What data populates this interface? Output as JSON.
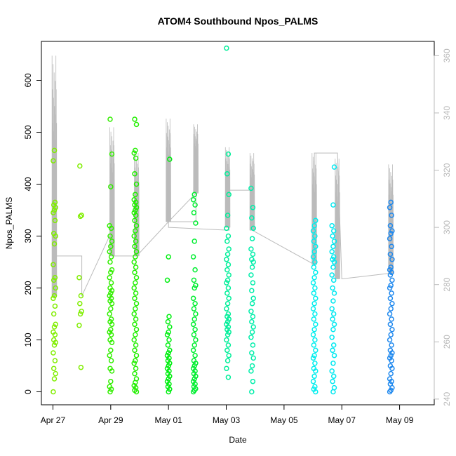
{
  "chart_data": {
    "type": "scatter",
    "title": "ATOM4 Southbound Npos_PALMS",
    "xlabel": "Date",
    "ylabel": "Npos_PALMS",
    "x_ticks": [
      "Apr 27",
      "Apr 29",
      "May 01",
      "May 03",
      "May 05",
      "May 07",
      "May 09"
    ],
    "x_tick_days": [
      0,
      2,
      4,
      6,
      8,
      10,
      12
    ],
    "xlim": [
      -0.4,
      13.2
    ],
    "ylim": [
      -25,
      675
    ],
    "y_ticks": [
      0,
      100,
      200,
      300,
      400,
      500,
      600
    ],
    "y2_ticks": [
      240,
      260,
      280,
      300,
      320,
      340,
      360
    ],
    "y2lim": [
      238,
      365
    ],
    "point_shape": "open-circle",
    "color_scale": "yellowgreen-to-blue by time",
    "series": [
      {
        "day": 0.05,
        "color": "#80ee00",
        "values": [
          0,
          25,
          35,
          45,
          60,
          75,
          90,
          95,
          100,
          110,
          115,
          125,
          130,
          150,
          165,
          180,
          185,
          200,
          215,
          220,
          245,
          285,
          300,
          305,
          330,
          345,
          350,
          355,
          360,
          365,
          445,
          465
        ]
      },
      {
        "day": 0.95,
        "color": "#80ee00",
        "values": [
          47,
          128,
          150,
          155,
          170,
          185,
          220,
          338,
          340,
          435
        ]
      },
      {
        "day": 2.0,
        "color": "#33ee00",
        "values": [
          0,
          5,
          10,
          20,
          40,
          45,
          60,
          70,
          80,
          95,
          100,
          110,
          115,
          120,
          130,
          135,
          140,
          150,
          160,
          170,
          175,
          180,
          185,
          190,
          195,
          200,
          210,
          220,
          230,
          235,
          250,
          260,
          270,
          280,
          290,
          300,
          315,
          320,
          395,
          458,
          525
        ]
      },
      {
        "day": 2.85,
        "color": "#22ee00",
        "values": [
          0,
          3,
          8,
          12,
          18,
          25,
          35,
          45,
          55,
          60,
          70,
          80,
          90,
          100,
          110,
          120,
          130,
          140,
          150,
          160,
          170,
          180,
          190,
          200,
          210,
          220,
          230,
          240,
          250,
          260,
          270,
          280,
          290,
          300,
          310,
          320,
          330,
          340,
          345,
          350,
          355,
          360,
          365,
          370,
          380,
          400,
          420,
          450,
          460,
          465,
          515,
          525
        ]
      },
      {
        "day": 4.0,
        "color": "#00ee10",
        "values": [
          0,
          5,
          10,
          15,
          20,
          25,
          30,
          35,
          40,
          45,
          50,
          55,
          60,
          65,
          70,
          75,
          80,
          90,
          100,
          110,
          115,
          125,
          135,
          145,
          215,
          260,
          448
        ]
      },
      {
        "day": 4.9,
        "color": "#00ee30",
        "values": [
          0,
          3,
          6,
          10,
          15,
          20,
          25,
          30,
          35,
          40,
          45,
          50,
          55,
          60,
          70,
          80,
          90,
          100,
          110,
          120,
          130,
          140,
          150,
          160,
          170,
          180,
          200,
          205,
          215,
          235,
          260,
          290,
          325,
          345,
          360,
          370,
          380
        ]
      },
      {
        "day": 6.05,
        "color": "#00ee99",
        "values": [
          28,
          45,
          60,
          70,
          80,
          90,
          100,
          110,
          115,
          120,
          125,
          130,
          135,
          140,
          145,
          150,
          160,
          170,
          180,
          190,
          200,
          210,
          215,
          225,
          235,
          245,
          255,
          265,
          275,
          290,
          300,
          315,
          340,
          380,
          420,
          458,
          662
        ]
      },
      {
        "day": 6.9,
        "color": "#00eeaa",
        "values": [
          0,
          20,
          40,
          50,
          65,
          75,
          90,
          105,
          115,
          125,
          135,
          145,
          155,
          170,
          180,
          195,
          210,
          225,
          240,
          250,
          255,
          265,
          275,
          295,
          315,
          335,
          355,
          392
        ]
      },
      {
        "day": 9.05,
        "color": "#00eeee",
        "values": [
          0,
          5,
          10,
          20,
          30,
          40,
          45,
          55,
          65,
          70,
          80,
          90,
          100,
          110,
          120,
          130,
          140,
          150,
          160,
          170,
          180,
          190,
          200,
          210,
          220,
          230,
          240,
          250,
          260,
          270,
          280,
          290,
          300,
          310,
          320,
          330
        ]
      },
      {
        "day": 9.7,
        "color": "#00e8f0",
        "values": [
          0,
          8,
          20,
          30,
          40,
          55,
          70,
          80,
          90,
          105,
          120,
          130,
          140,
          150,
          160,
          175,
          190,
          200,
          215,
          225,
          240,
          250,
          255,
          260,
          270,
          280,
          290,
          300,
          310,
          320,
          360,
          433
        ]
      },
      {
        "day": 11.7,
        "color": "#1e88ee",
        "values": [
          0,
          3,
          8,
          15,
          20,
          25,
          35,
          45,
          50,
          60,
          65,
          70,
          75,
          80,
          90,
          100,
          110,
          120,
          130,
          140,
          150,
          160,
          170,
          180,
          190,
          200,
          205,
          215,
          225,
          230,
          235,
          240,
          255,
          265,
          280,
          295,
          305,
          310,
          320,
          340,
          355,
          365
        ]
      }
    ],
    "trajectory": {
      "color": "#bbbbbb",
      "axis": "right",
      "path": [
        [
          0.05,
          276
        ],
        [
          0.05,
          290
        ],
        [
          1.0,
          290
        ],
        [
          1.0,
          276
        ],
        [
          2.05,
          299
        ],
        [
          2.05,
          290
        ],
        [
          2.9,
          290
        ],
        [
          4.0,
          302
        ],
        [
          4.95,
          312
        ],
        [
          4.95,
          302
        ],
        [
          4.0,
          302
        ],
        [
          4.0,
          300
        ],
        [
          6.1,
          299
        ],
        [
          6.1,
          313
        ],
        [
          6.9,
          313
        ],
        [
          6.9,
          299
        ],
        [
          9.05,
          287
        ],
        [
          9.05,
          326
        ],
        [
          9.85,
          326
        ],
        [
          10.0,
          282
        ],
        [
          11.7,
          284
        ]
      ],
      "spikes": [
        {
          "day": 0.05,
          "base": 276,
          "peak": 360
        },
        {
          "day": 2.05,
          "base": 290,
          "peak": 335
        },
        {
          "day": 2.9,
          "base": 290,
          "peak": 326
        },
        {
          "day": 4.0,
          "base": 302,
          "peak": 338
        },
        {
          "day": 4.95,
          "base": 312,
          "peak": 336
        },
        {
          "day": 6.05,
          "base": 300,
          "peak": 328
        },
        {
          "day": 6.9,
          "base": 299,
          "peak": 326
        },
        {
          "day": 9.05,
          "base": 287,
          "peak": 326
        },
        {
          "day": 9.85,
          "base": 282,
          "peak": 324
        },
        {
          "day": 11.7,
          "base": 284,
          "peak": 322
        }
      ]
    },
    "grid": false,
    "legend": "none"
  }
}
